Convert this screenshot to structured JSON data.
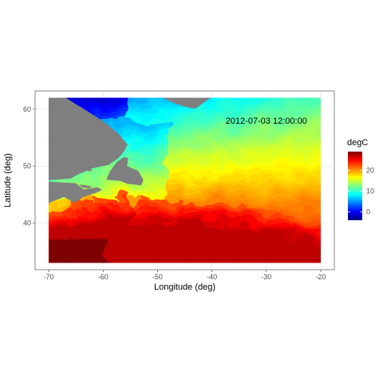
{
  "chart_data": {
    "type": "heatmap",
    "title": "",
    "annotation": "2012-07-03 12:00:00",
    "xlabel": "Longitude (deg)",
    "ylabel": "Latitude (deg)",
    "xlim": [
      -72.5,
      -17.5
    ],
    "ylim": [
      31.8,
      63.2
    ],
    "data_extent": {
      "lon": [
        -70,
        -20
      ],
      "lat": [
        33,
        62
      ]
    },
    "x_ticks": [
      -70,
      -60,
      -50,
      -40,
      -30,
      -20
    ],
    "y_ticks": [
      40,
      50,
      60
    ],
    "grid": true,
    "legend": {
      "title": "degC",
      "placement": "right",
      "range": [
        -4,
        29
      ],
      "ticks": [
        0,
        10,
        20
      ]
    },
    "colormap": [
      "#00007f",
      "#0000ff",
      "#007fff",
      "#00ffff",
      "#7fff7f",
      "#ffff00",
      "#ff7f00",
      "#ff0000",
      "#7f0000"
    ],
    "land_color": "#7f7f7f",
    "temperature_zones": [
      {
        "lat": [
          55,
          62
        ],
        "degC": [
          2,
          8
        ]
      },
      {
        "lat": [
          45,
          55
        ],
        "degC": [
          8,
          15
        ]
      },
      {
        "lat": [
          40,
          45
        ],
        "degC": [
          15,
          22
        ]
      },
      {
        "lat": [
          33,
          40
        ],
        "degC": [
          24,
          29
        ]
      }
    ]
  }
}
